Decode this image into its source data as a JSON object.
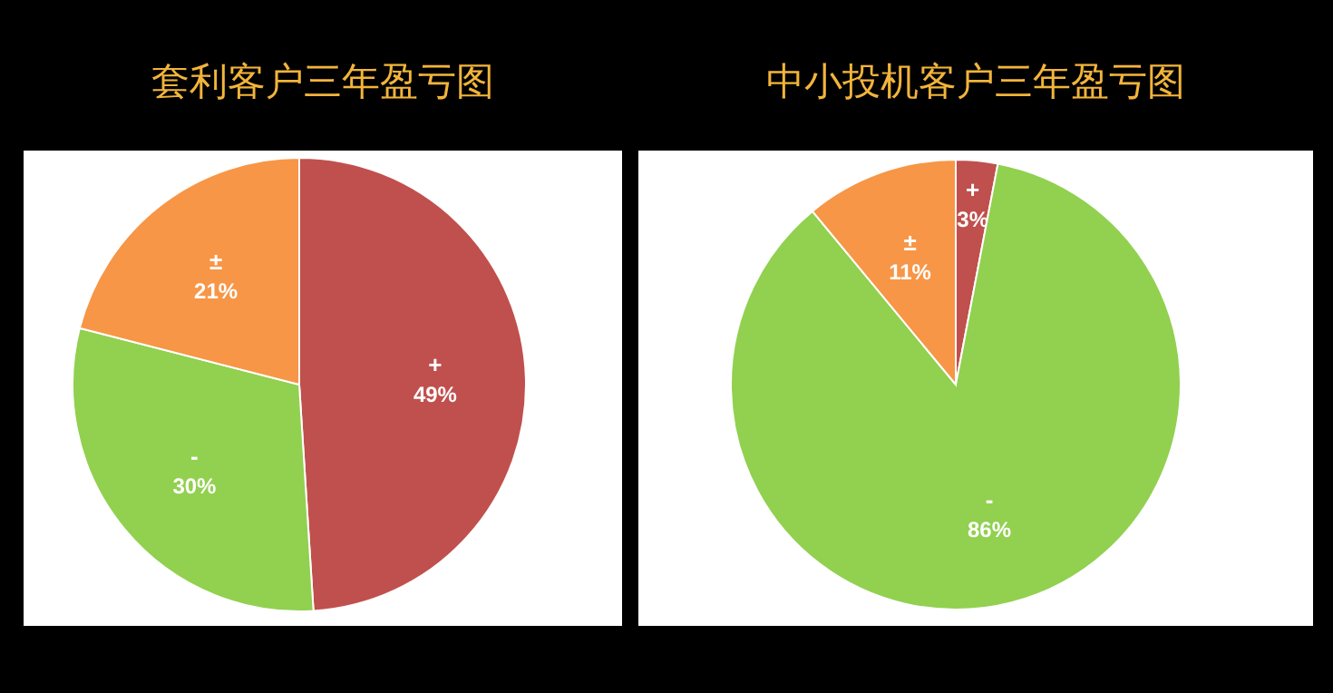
{
  "chart_data": [
    {
      "type": "pie",
      "title": "套利客户三年盈亏图",
      "categories": [
        "+",
        "-",
        "±"
      ],
      "values": [
        49,
        30,
        21
      ],
      "colors": [
        "#c0504d",
        "#92d050",
        "#f79646"
      ],
      "value_labels": [
        "49%",
        "30%",
        "21%"
      ]
    },
    {
      "type": "pie",
      "title": "中小投机客户三年盈亏图",
      "categories": [
        "+",
        "-",
        "±"
      ],
      "values": [
        3,
        86,
        11
      ],
      "colors": [
        "#c0504d",
        "#92d050",
        "#f79646"
      ],
      "value_labels": [
        "3%",
        "86%",
        "11%"
      ]
    }
  ]
}
